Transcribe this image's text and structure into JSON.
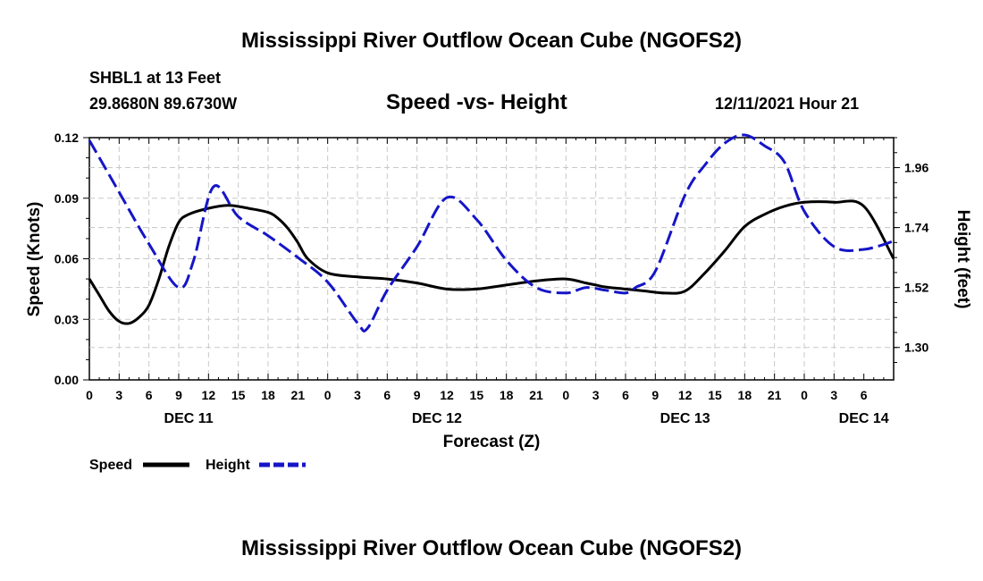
{
  "header": {
    "title": "Mississippi River Outflow Ocean Cube (NGOFS2)",
    "station": "SHBL1 at 13 Feet",
    "coords": "29.8680N  89.6730W",
    "date": "12/11/2021 Hour 21"
  },
  "footer": {
    "title": "Mississippi River Outflow Ocean Cube (NGOFS2)"
  },
  "chart_data": {
    "type": "line",
    "title": "Speed -vs- Height",
    "xlabel": "Forecast (Z)",
    "ylabel": "Speed (Knots)",
    "y2label": "Height (feet)",
    "x_hours_range": [
      0,
      81
    ],
    "x_tick_labels": [
      "0",
      "3",
      "6",
      "9",
      "12",
      "15",
      "18",
      "21",
      "0",
      "3",
      "6",
      "9",
      "12",
      "15",
      "18",
      "21",
      "0",
      "3",
      "6",
      "9",
      "12",
      "15",
      "18",
      "21",
      "0",
      "3",
      "6"
    ],
    "date_labels": [
      {
        "label": "DEC 11",
        "hour": 10
      },
      {
        "label": "DEC 12",
        "hour": 35
      },
      {
        "label": "DEC 13",
        "hour": 60
      },
      {
        "label": "DEC 14",
        "hour": 78
      }
    ],
    "ylim": [
      0,
      0.12
    ],
    "y_ticks": [
      "0.00",
      "0.03",
      "0.06",
      "0.09",
      "0.12"
    ],
    "y2lim": [
      1.181,
      2.07
    ],
    "y2_ticks": [
      "1.30",
      "1.52",
      "1.74",
      "1.96"
    ],
    "legend": [
      {
        "label": "Speed",
        "color": "#000000",
        "style": "solid"
      },
      {
        "label": "Height",
        "color": "#1515c8",
        "style": "dashed"
      }
    ],
    "series": [
      {
        "name": "Speed",
        "axis": "left",
        "color": "#000000",
        "x": [
          0,
          1,
          2,
          3,
          4,
          5,
          6,
          7,
          8,
          9,
          10,
          12,
          14,
          16,
          18,
          19,
          20,
          21,
          22,
          24,
          27,
          30,
          33,
          36,
          39,
          42,
          45,
          48,
          50,
          51,
          52,
          54,
          56,
          58,
          60,
          62,
          64,
          66,
          68,
          70,
          72,
          75,
          78,
          81
        ],
        "values": [
          0.05,
          0.042,
          0.034,
          0.029,
          0.028,
          0.031,
          0.037,
          0.05,
          0.066,
          0.078,
          0.082,
          0.085,
          0.0865,
          0.085,
          0.083,
          0.08,
          0.075,
          0.068,
          0.06,
          0.053,
          0.051,
          0.05,
          0.048,
          0.045,
          0.045,
          0.047,
          0.049,
          0.05,
          0.048,
          0.047,
          0.046,
          0.045,
          0.044,
          0.043,
          0.044,
          0.053,
          0.064,
          0.076,
          0.082,
          0.086,
          0.088,
          0.088,
          0.086,
          0.06
        ]
      },
      {
        "name": "Height",
        "axis": "right",
        "color": "#1515c8",
        "x": [
          0,
          3,
          6,
          9,
          10.5,
          12.5,
          15,
          18,
          21,
          24,
          27,
          28,
          30,
          33,
          36,
          39,
          42,
          45,
          48,
          50,
          52,
          54,
          55,
          57,
          60,
          62,
          64,
          66,
          68,
          70,
          72,
          75,
          78,
          81
        ],
        "values": [
          2.06,
          1.87,
          1.68,
          1.52,
          1.62,
          1.89,
          1.78,
          1.71,
          1.63,
          1.54,
          1.39,
          1.37,
          1.51,
          1.67,
          1.85,
          1.77,
          1.62,
          1.52,
          1.5,
          1.52,
          1.51,
          1.5,
          1.52,
          1.58,
          1.86,
          1.97,
          2.05,
          2.08,
          2.04,
          1.98,
          1.8,
          1.67,
          1.66,
          1.69
        ]
      }
    ]
  }
}
